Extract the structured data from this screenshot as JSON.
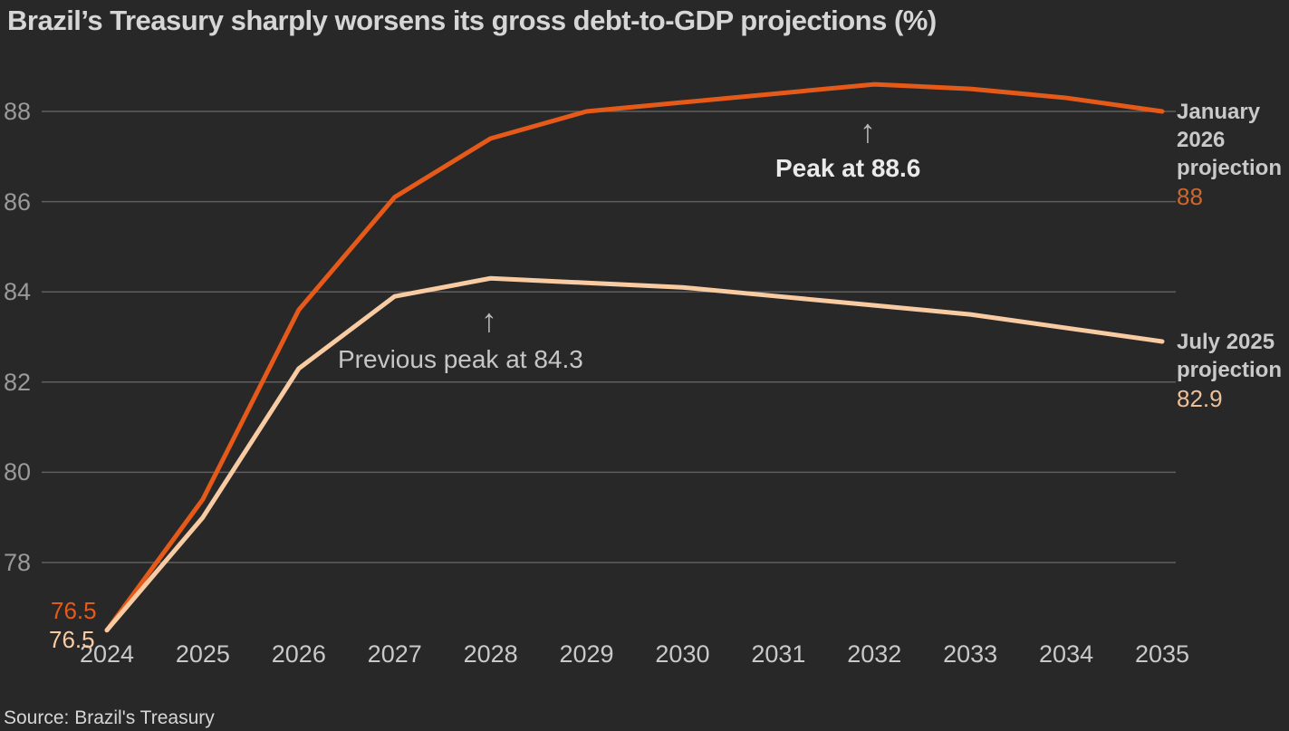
{
  "title": "Brazil’s Treasury sharply worsens its gross debt-to-GDP projections (%)",
  "source": "Source: Brazil's Treasury",
  "glyphs": {
    "up_arrow": "↑"
  },
  "colors": {
    "background": "#282828",
    "gridline": "#5f5f5f",
    "jan_line": "#e65a19",
    "jul_line": "#f8cba2"
  },
  "chart_data": {
    "type": "line",
    "x": [
      2024,
      2025,
      2026,
      2027,
      2028,
      2029,
      2030,
      2031,
      2032,
      2033,
      2034,
      2035
    ],
    "series": [
      {
        "name": "January 2026 projection",
        "color": "#e65a19",
        "values": [
          76.5,
          79.4,
          83.6,
          86.1,
          87.4,
          88.0,
          88.2,
          88.4,
          88.6,
          88.5,
          88.3,
          88.0
        ],
        "start_label": "76.5",
        "end_label": "88"
      },
      {
        "name": "July 2025 projection",
        "color": "#f8cba2",
        "values": [
          76.5,
          79.0,
          82.3,
          83.9,
          84.3,
          84.2,
          84.1,
          83.9,
          83.7,
          83.5,
          83.2,
          82.9
        ],
        "start_label": "76.5",
        "end_label": "82.9"
      }
    ],
    "yticks": [
      78,
      80,
      82,
      84,
      86,
      88
    ],
    "ylim": [
      76.5,
      89
    ],
    "xlabel": "",
    "ylabel": "",
    "grid": true,
    "legend_position": "right-edge-labels",
    "title": "Brazil’s Treasury sharply worsens its gross debt-to-GDP projections (%)",
    "annotations": [
      {
        "text": "Peak at 88.6",
        "bold": true,
        "target_year": 2032,
        "target_value": 88.6
      },
      {
        "text": "Previous peak at 84.3",
        "bold": false,
        "target_year": 2028,
        "target_value": 84.3
      }
    ]
  },
  "right_labels": {
    "jan": {
      "label": "January 2026 projection",
      "value": "88"
    },
    "jul": {
      "label": "July 2025 projection",
      "value": "82.9"
    }
  }
}
